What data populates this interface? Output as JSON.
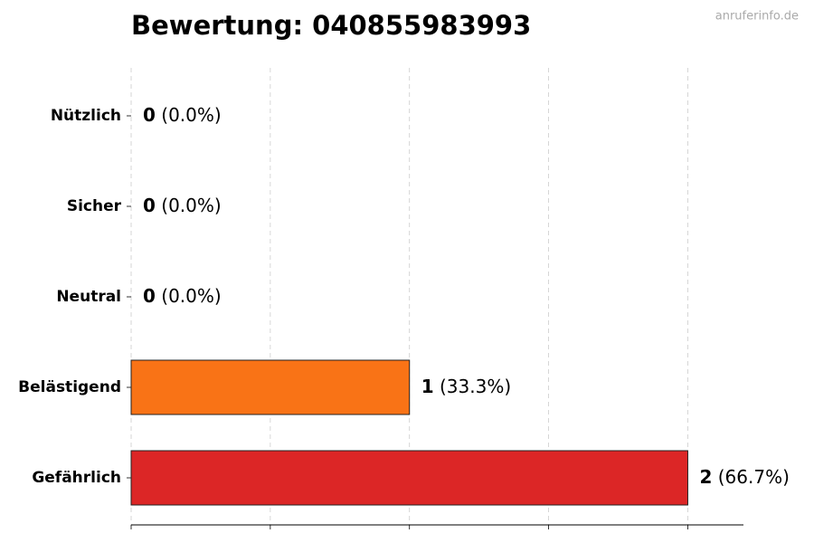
{
  "chart_data": {
    "type": "barh",
    "title": "Bewertung: 040855983993",
    "watermark": "anruferinfo.de",
    "categories": [
      "Nützlich",
      "Sicher",
      "Neutral",
      "Belästigend",
      "Gefährlich"
    ],
    "values": [
      0,
      0,
      0,
      1,
      2
    ],
    "percent_labels": [
      "(0.0%)",
      "(0.0%)",
      "(0.0%)",
      "(33.3%)",
      "(66.7%)"
    ],
    "colors": [
      "#22c55e",
      "#3b82f6",
      "#9ca3af",
      "#f97316",
      "#dc2626"
    ],
    "xlim": [
      0,
      2.2
    ],
    "xticks": [
      0,
      0.5,
      1,
      1.5,
      2
    ],
    "grid": true
  }
}
